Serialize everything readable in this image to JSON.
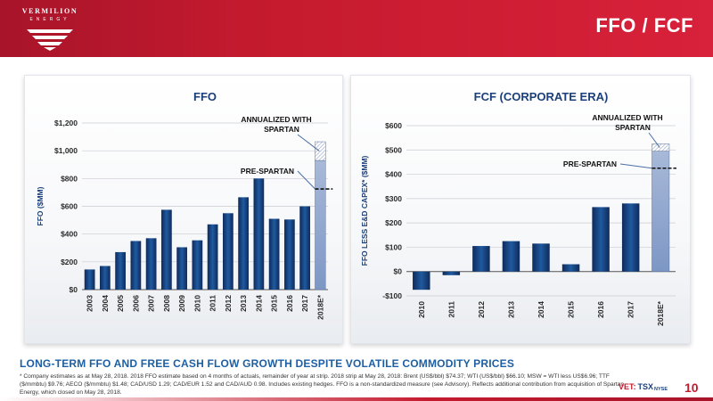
{
  "header": {
    "logo_name": "VERMILION",
    "logo_sub": "ENERGY",
    "title": "FFO / FCF",
    "background": "#c41a2e"
  },
  "colors": {
    "bar_dark": "#0f2a5a",
    "bar_light": "#1f5aa0",
    "estimate_bar": "#7d97c5",
    "hatch": "#9aa9c6",
    "title_text": "#1a3f7a",
    "axis_text": "#1a3f7a",
    "tagline": "#1d5fa3",
    "accent_red": "#c41a2e"
  },
  "chart_data": [
    {
      "type": "bar",
      "title": "FFO",
      "ylabel": "FFO ($MM)",
      "xlabel": "",
      "ylim": [
        0,
        1200
      ],
      "yticks": [
        0,
        200,
        400,
        600,
        800,
        1000,
        1200
      ],
      "ytick_labels": [
        "$0",
        "$200",
        "$400",
        "$600",
        "$800",
        "$1,000",
        "$1,200"
      ],
      "categories": [
        "2003",
        "2004",
        "2005",
        "2006",
        "2007",
        "2008",
        "2009",
        "2010",
        "2011",
        "2012",
        "2013",
        "2014",
        "2015",
        "2016",
        "2017",
        "2018E*"
      ],
      "values": [
        145,
        170,
        270,
        350,
        370,
        575,
        305,
        355,
        470,
        550,
        665,
        800,
        510,
        505,
        600,
        930
      ],
      "annualized_top": 1065,
      "pre_spartan_value": 725,
      "grid": true,
      "annotations": {
        "annualized": "ANNUALIZED WITH SPARTAN",
        "pre_spartan": "PRE-SPARTAN"
      }
    },
    {
      "type": "bar",
      "title": "FCF (CORPORATE ERA)",
      "ylabel": "FFO LESS E&D CAPEX* ($MM)",
      "xlabel": "",
      "ylim": [
        -100,
        600
      ],
      "yticks": [
        -100,
        0,
        100,
        200,
        300,
        400,
        500,
        600
      ],
      "ytick_labels": [
        "-$100",
        "$0",
        "$100",
        "$200",
        "$300",
        "$400",
        "$500",
        "$600"
      ],
      "categories": [
        "2010",
        "2011",
        "2012",
        "2013",
        "2014",
        "2015",
        "2016",
        "2017",
        "2018E*"
      ],
      "values": [
        -75,
        -15,
        105,
        125,
        115,
        30,
        265,
        280,
        495
      ],
      "annualized_top": 525,
      "pre_spartan_value": 425,
      "grid": true,
      "annotations": {
        "annualized": "ANNUALIZED WITH SPARTAN",
        "pre_spartan": "PRE-SPARTAN"
      }
    }
  ],
  "tagline": "LONG-TERM FFO AND FREE CASH FLOW GROWTH DESPITE VOLATILE COMMODITY PRICES",
  "footnote": "* Company estimates as at May 28, 2018. 2018 FFO estimate based on 4 months of actuals, remainder of year at strip. 2018 strip at May 28, 2018: Brent (US$/bbl) $74.37; WTI (US$/bbl) $66.10; MSW = WTI less US$6.96; TTF ($/mmbtu) $9.76; AECO ($/mmbtu) $1.48; CAD/USD 1.29; CAD/EUR 1.52 and CAD/AUD 0.98. Includes existing hedges. FFO is a non-standardized measure (see Advisory). Reflects additional contribution from acquisition of Spartan Energy, which closed on May 28, 2018.",
  "exchange": {
    "vet": "VET:",
    "tsx": "TSX",
    "nyse": "NYSE"
  },
  "slide_number": "10"
}
